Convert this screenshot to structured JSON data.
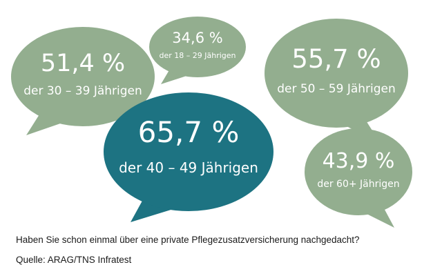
{
  "colors": {
    "green": "#93ae8f",
    "teal": "#1d7382",
    "text_on_bubble": "#ffffff",
    "footer_text": "#1a1a1a"
  },
  "chart_data": {
    "type": "bubble-callouts",
    "unit": "%",
    "categories": [
      "der 18 – 29 Jährigen",
      "der 30 – 39 Jährigen",
      "der 40 – 49 Jährigen",
      "der 50 – 59 Jährigen",
      "der 60+ Jährigen"
    ],
    "values": [
      34.6,
      51.4,
      65.7,
      55.7,
      43.9
    ],
    "value_labels": [
      "34,6 %",
      "51,4 %",
      "65,7 %",
      "55,7 %",
      "43,9 %"
    ],
    "highlight": "der 40 – 49 Jährigen"
  },
  "footer": {
    "question": "Haben Sie schon einmal über eine private Pflegezusatzversicherung nachgedacht?",
    "source": "Quelle: ARAG/TNS Infratest"
  }
}
